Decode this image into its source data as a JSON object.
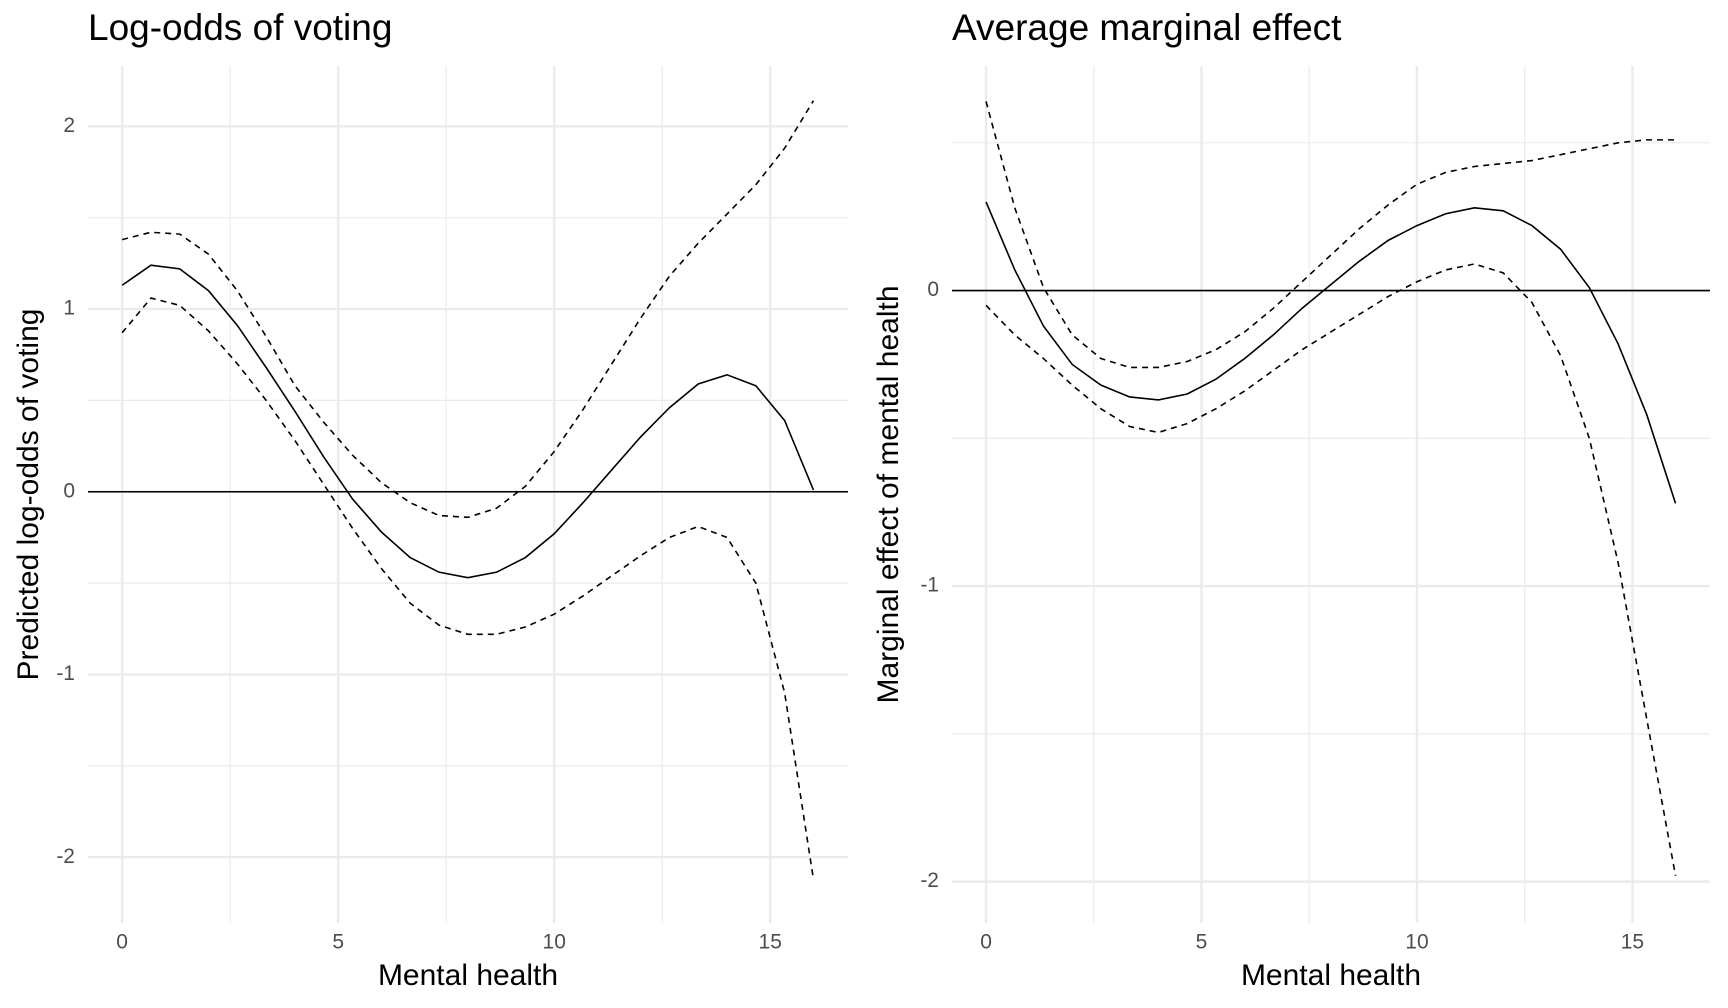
{
  "chart_data": [
    {
      "type": "line",
      "title": "Log-odds of voting",
      "x_label": "Mental health",
      "y_label": "Predicted log-odds of voting",
      "x": [
        0,
        0.667,
        1.333,
        2,
        2.667,
        3.333,
        4,
        4.667,
        5.333,
        6,
        6.667,
        7.333,
        8,
        8.667,
        9.333,
        10,
        10.667,
        11.333,
        12,
        12.667,
        13.333,
        14,
        14.667,
        15.333,
        16
      ],
      "series": [
        {
          "color": "#000000",
          "dash": "solid",
          "values": [
            1.13,
            1.24,
            1.22,
            1.1,
            0.91,
            0.68,
            0.44,
            0.19,
            -0.04,
            -0.22,
            -0.36,
            -0.44,
            -0.47,
            -0.44,
            -0.36,
            -0.23,
            -0.06,
            0.12,
            0.3,
            0.46,
            0.59,
            0.64,
            0.58,
            0.39,
            0.01
          ]
        },
        {
          "color": "#000000",
          "dash": "dashed",
          "values": [
            1.38,
            1.42,
            1.41,
            1.3,
            1.1,
            0.85,
            0.58,
            0.38,
            0.2,
            0.05,
            -0.06,
            -0.13,
            -0.14,
            -0.09,
            0.03,
            0.22,
            0.45,
            0.7,
            0.95,
            1.18,
            1.36,
            1.52,
            1.68,
            1.88,
            2.14
          ]
        },
        {
          "color": "#000000",
          "dash": "dashed",
          "values": [
            0.87,
            1.06,
            1.02,
            0.88,
            0.7,
            0.5,
            0.28,
            0.04,
            -0.2,
            -0.42,
            -0.61,
            -0.73,
            -0.78,
            -0.78,
            -0.74,
            -0.67,
            -0.57,
            -0.46,
            -0.35,
            -0.25,
            -0.19,
            -0.25,
            -0.5,
            -1.1,
            -2.12
          ]
        }
      ],
      "hline": 0,
      "xlim": [
        -0.79,
        16.8
      ],
      "ylim": [
        -2.36,
        2.33
      ],
      "xticks": [
        0,
        5,
        10,
        15
      ],
      "yticks": [
        -2,
        -1,
        0,
        1,
        2
      ],
      "grid": true
    },
    {
      "type": "line",
      "title": "Average marginal effect",
      "x_label": "Mental health",
      "y_label": "Marginal effect of mental health",
      "x": [
        0,
        0.667,
        1.333,
        2,
        2.667,
        3.333,
        4,
        4.667,
        5.333,
        6,
        6.667,
        7.333,
        8,
        8.667,
        9.333,
        10,
        10.667,
        11.333,
        12,
        12.667,
        13.333,
        14,
        14.667,
        15.333,
        16
      ],
      "series": [
        {
          "color": "#000000",
          "dash": "solid",
          "values": [
            0.3,
            0.07,
            -0.12,
            -0.25,
            -0.32,
            -0.36,
            -0.37,
            -0.35,
            -0.3,
            -0.23,
            -0.15,
            -0.06,
            0.02,
            0.1,
            0.17,
            0.22,
            0.26,
            0.28,
            0.27,
            0.22,
            0.14,
            0.01,
            -0.18,
            -0.42,
            -0.72
          ]
        },
        {
          "color": "#000000",
          "dash": "dashed",
          "values": [
            0.64,
            0.28,
            0.01,
            -0.15,
            -0.23,
            -0.26,
            -0.26,
            -0.24,
            -0.2,
            -0.14,
            -0.06,
            0.03,
            0.12,
            0.21,
            0.29,
            0.36,
            0.4,
            0.42,
            0.43,
            0.44,
            0.46,
            0.48,
            0.5,
            0.51,
            0.51
          ]
        },
        {
          "color": "#000000",
          "dash": "dashed",
          "values": [
            -0.05,
            -0.15,
            -0.23,
            -0.32,
            -0.4,
            -0.46,
            -0.48,
            -0.45,
            -0.4,
            -0.34,
            -0.27,
            -0.2,
            -0.14,
            -0.08,
            -0.02,
            0.03,
            0.07,
            0.09,
            0.06,
            -0.04,
            -0.22,
            -0.5,
            -0.92,
            -1.45,
            -1.98
          ]
        }
      ],
      "hline": 0,
      "xlim": [
        -0.79,
        16.8
      ],
      "ylim": [
        -2.14,
        0.76
      ],
      "xticks": [
        0,
        5,
        10,
        15
      ],
      "yticks": [
        -2,
        -1,
        0
      ],
      "grid": true
    }
  ]
}
